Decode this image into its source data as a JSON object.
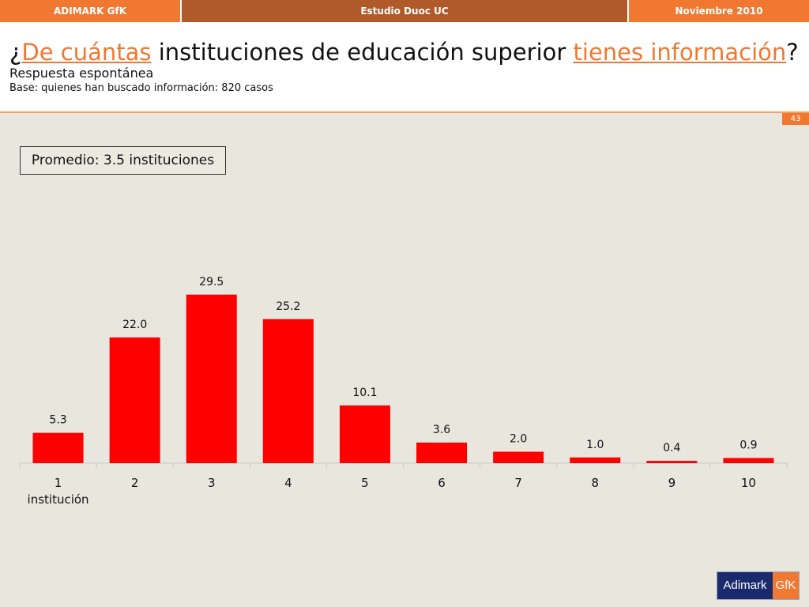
{
  "header": {
    "left": "ADIMARK GfK",
    "center": "Estudio Duoc UC",
    "right": "Noviembre 2010"
  },
  "title": {
    "q_open": "¿",
    "hl1": "De cuántas",
    "mid": " instituciones de educación superior ",
    "hl2": "tienes información",
    "q_close": "?"
  },
  "subtitle": "Respuesta espontánea",
  "base": "Base: quienes han buscado información: 820 casos",
  "page_number": "43",
  "average_label": "Promedio: 3.5 instituciones",
  "logo": {
    "left": "Adimark",
    "right": "GfK"
  },
  "colors": {
    "accent": "#f07830",
    "bar": "#ff0000",
    "background": "#e8e6dd"
  },
  "chart_data": {
    "type": "bar",
    "categories": [
      "1\ninstitución",
      "2",
      "3",
      "4",
      "5",
      "6",
      "7",
      "8",
      "9",
      "10"
    ],
    "values": [
      5.3,
      22.0,
      29.5,
      25.2,
      10.1,
      3.6,
      2.0,
      1.0,
      0.4,
      0.9
    ],
    "data_labels": [
      "5.3",
      "22.0",
      "29.5",
      "25.2",
      "10.1",
      "3.6",
      "2.0",
      "1.0",
      "0.4",
      "0.9"
    ],
    "title": "",
    "xlabel": "",
    "ylabel": "",
    "ylim": [
      0,
      35
    ],
    "grid": false,
    "legend": "none"
  }
}
